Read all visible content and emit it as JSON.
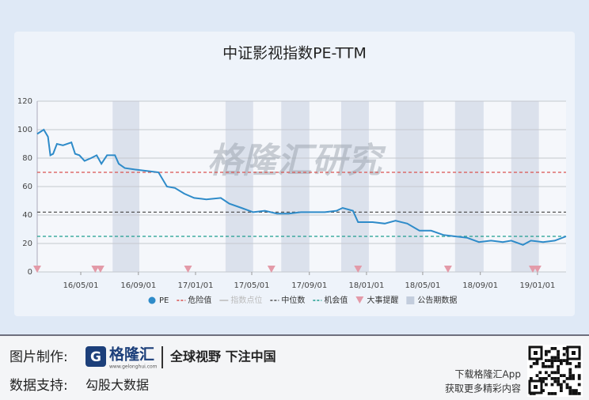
{
  "chart_data": {
    "type": "line",
    "title": "中证影视指数PE-TTM",
    "x": [
      "16/01/29",
      "16/02/12",
      "16/02/21",
      "16/02/26",
      "16/03/03",
      "16/03/11",
      "16/03/24",
      "16/04/11",
      "16/04/19",
      "16/04/28",
      "16/05/09",
      "16/05/23",
      "16/06/04",
      "16/06/14",
      "16/06/26",
      "16/07/13",
      "16/07/21",
      "16/08/03",
      "16/08/24",
      "16/09/19",
      "16/10/14",
      "16/11/01",
      "16/11/18",
      "16/12/08",
      "16/12/29",
      "17/01/24",
      "17/02/24",
      "17/03/14",
      "17/04/09",
      "17/05/04",
      "17/05/29",
      "17/06/24",
      "17/07/19",
      "17/08/14",
      "17/09/09",
      "17/10/04",
      "17/10/29",
      "17/11/11",
      "17/12/03",
      "17/12/14",
      "18/01/14",
      "18/02/09",
      "18/03/04",
      "18/03/29",
      "18/04/24",
      "18/05/19",
      "18/06/14",
      "18/07/09",
      "18/08/04",
      "18/08/29",
      "18/09/24",
      "18/10/19",
      "18/11/06",
      "18/12/01",
      "18/12/18",
      "19/01/13",
      "19/02/07",
      "19/03/03"
    ],
    "series": [
      {
        "name": "PE",
        "color": "#2e8bc9",
        "values": [
          97,
          100,
          95,
          82,
          83,
          90,
          89,
          91,
          83,
          82,
          78,
          80,
          82,
          76,
          82,
          82,
          76,
          73,
          72,
          71,
          70,
          60,
          59,
          55,
          52,
          51,
          52,
          48,
          45,
          42,
          43,
          41,
          41,
          42,
          42,
          42,
          43,
          45,
          43,
          35,
          35,
          34,
          36,
          34,
          29,
          29,
          26,
          25,
          24,
          21,
          22,
          21,
          22,
          19,
          22,
          21,
          22,
          25
        ]
      }
    ],
    "hidden_series": [
      {
        "name": "指数点位",
        "color": "#bbbbbb"
      }
    ],
    "reference_lines": [
      {
        "name": "危险值",
        "value": 70,
        "color": "#d9534f"
      },
      {
        "name": "中位数",
        "value": 42,
        "color": "#555555"
      },
      {
        "name": "机会值",
        "value": 25,
        "color": "#1f9e8f"
      }
    ],
    "events": {
      "name": "大事提醒",
      "color": "#e39aa8",
      "x": [
        "16/01/29",
        "16/06/01",
        "16/06/12",
        "16/12/16",
        "17/06/12",
        "17/12/14",
        "18/06/24",
        "18/12/22",
        "19/01/01"
      ]
    },
    "periods": {
      "name": "公告期数据",
      "color": "#dbe1ec",
      "x": [
        [
          "16/07/08",
          "16/09/03"
        ],
        [
          "17/03/06",
          "17/05/04"
        ],
        [
          "17/07/03",
          "17/09/01"
        ],
        [
          "17/11/08",
          "18/01/06"
        ],
        [
          "18/03/04",
          "18/05/03"
        ],
        [
          "18/07/09",
          "18/09/08"
        ],
        [
          "18/11/06",
          "19/01/04"
        ]
      ]
    },
    "xlim": [
      "16/01/29",
      "19/03/03"
    ],
    "xticks": [
      "16/05/01",
      "16/09/01",
      "17/01/01",
      "17/05/01",
      "17/09/01",
      "18/01/01",
      "18/05/01",
      "18/09/01",
      "19/01/01"
    ],
    "ylim": [
      0,
      120
    ],
    "yticks": [
      0,
      20,
      40,
      60,
      80,
      100,
      120
    ],
    "grid": true,
    "watermark": "格隆汇研究"
  },
  "footer": {
    "made_by_label": "图片制作:",
    "logo_text": "格隆汇",
    "logo_url": "www.gelonghui.com",
    "slogan": "全球视野 下注中国",
    "data_label": "数据支持:",
    "data_source": "勾股大数据",
    "app_line1": "下载格隆汇App",
    "app_line2": "获取更多精彩内容"
  }
}
